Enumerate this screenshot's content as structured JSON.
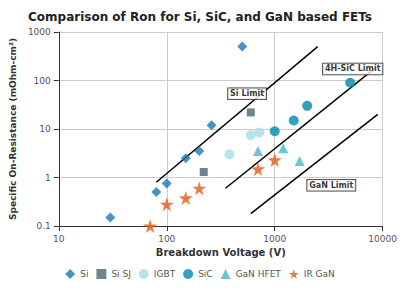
{
  "chart_data": {
    "type": "scatter",
    "title": "Comparison of Ron for Si, SiC, and GaN based FETs",
    "xlabel": "Breakdown Voltage (V)",
    "ylabel": "Specific On-Resistance (mOhm-cm²)",
    "log": true,
    "grid": true,
    "legend": "bottom",
    "xlim": [
      10,
      10000
    ],
    "ylim": [
      0.1,
      1000
    ],
    "xticks": [
      10,
      100,
      1000,
      10000
    ],
    "yticks": [
      0.1,
      1,
      10,
      100,
      1000
    ],
    "series": [
      {
        "name": "Si",
        "color": "#1a7ab0",
        "marker": "diamond",
        "x": [
          30,
          80,
          100,
          150,
          200,
          260,
          500
        ],
        "values": [
          0.15,
          0.5,
          0.75,
          2.5,
          3.5,
          12.0,
          500
        ]
      },
      {
        "name": "Si SJ",
        "color": "#4a6670",
        "marker": "square",
        "x": [
          220,
          600
        ],
        "values": [
          1.3,
          22
        ]
      },
      {
        "name": "IGBT",
        "color": "#a8dce8",
        "marker": "circle",
        "x": [
          380,
          600,
          720
        ],
        "values": [
          3.0,
          7.5,
          8.5
        ]
      },
      {
        "name": "SiC",
        "color": "#008aaa",
        "marker": "circle",
        "x": [
          1000,
          1500,
          2000,
          5000
        ],
        "values": [
          9.0,
          15.0,
          30.0,
          90
        ]
      },
      {
        "name": "GaN HFET",
        "color": "#4ab8c8",
        "marker": "triangle",
        "x": [
          700,
          1200,
          1700
        ],
        "values": [
          3.5,
          4.0,
          2.2
        ]
      },
      {
        "name": "IR GaN",
        "color": "#e05a18",
        "marker": "star",
        "x": [
          70,
          100,
          150,
          200,
          700,
          1000
        ],
        "values": [
          0.1,
          0.28,
          0.38,
          0.6,
          1.5,
          2.3
        ]
      },
      {
        "type": "line",
        "color": "#000000",
        "line_style": "solid",
        "x": [
          80,
          2500
        ],
        "values": [
          0.8,
          500
        ]
      },
      {
        "type": "line",
        "color": "#000000",
        "line_style": "solid",
        "x": [
          350,
          8500
        ],
        "values": [
          0.6,
          180
        ]
      },
      {
        "type": "line",
        "color": "#000000",
        "line_style": "solid",
        "x": [
          600,
          9000
        ],
        "values": [
          0.18,
          20
        ]
      }
    ],
    "annotations": [
      {
        "text": "Si Limit",
        "x": 370,
        "y": 40
      },
      {
        "text": "4H-SiC Limit",
        "x": 2800,
        "y": 130
      },
      {
        "text": "GaN Limit",
        "x": 2000,
        "y": 0.52
      }
    ]
  }
}
